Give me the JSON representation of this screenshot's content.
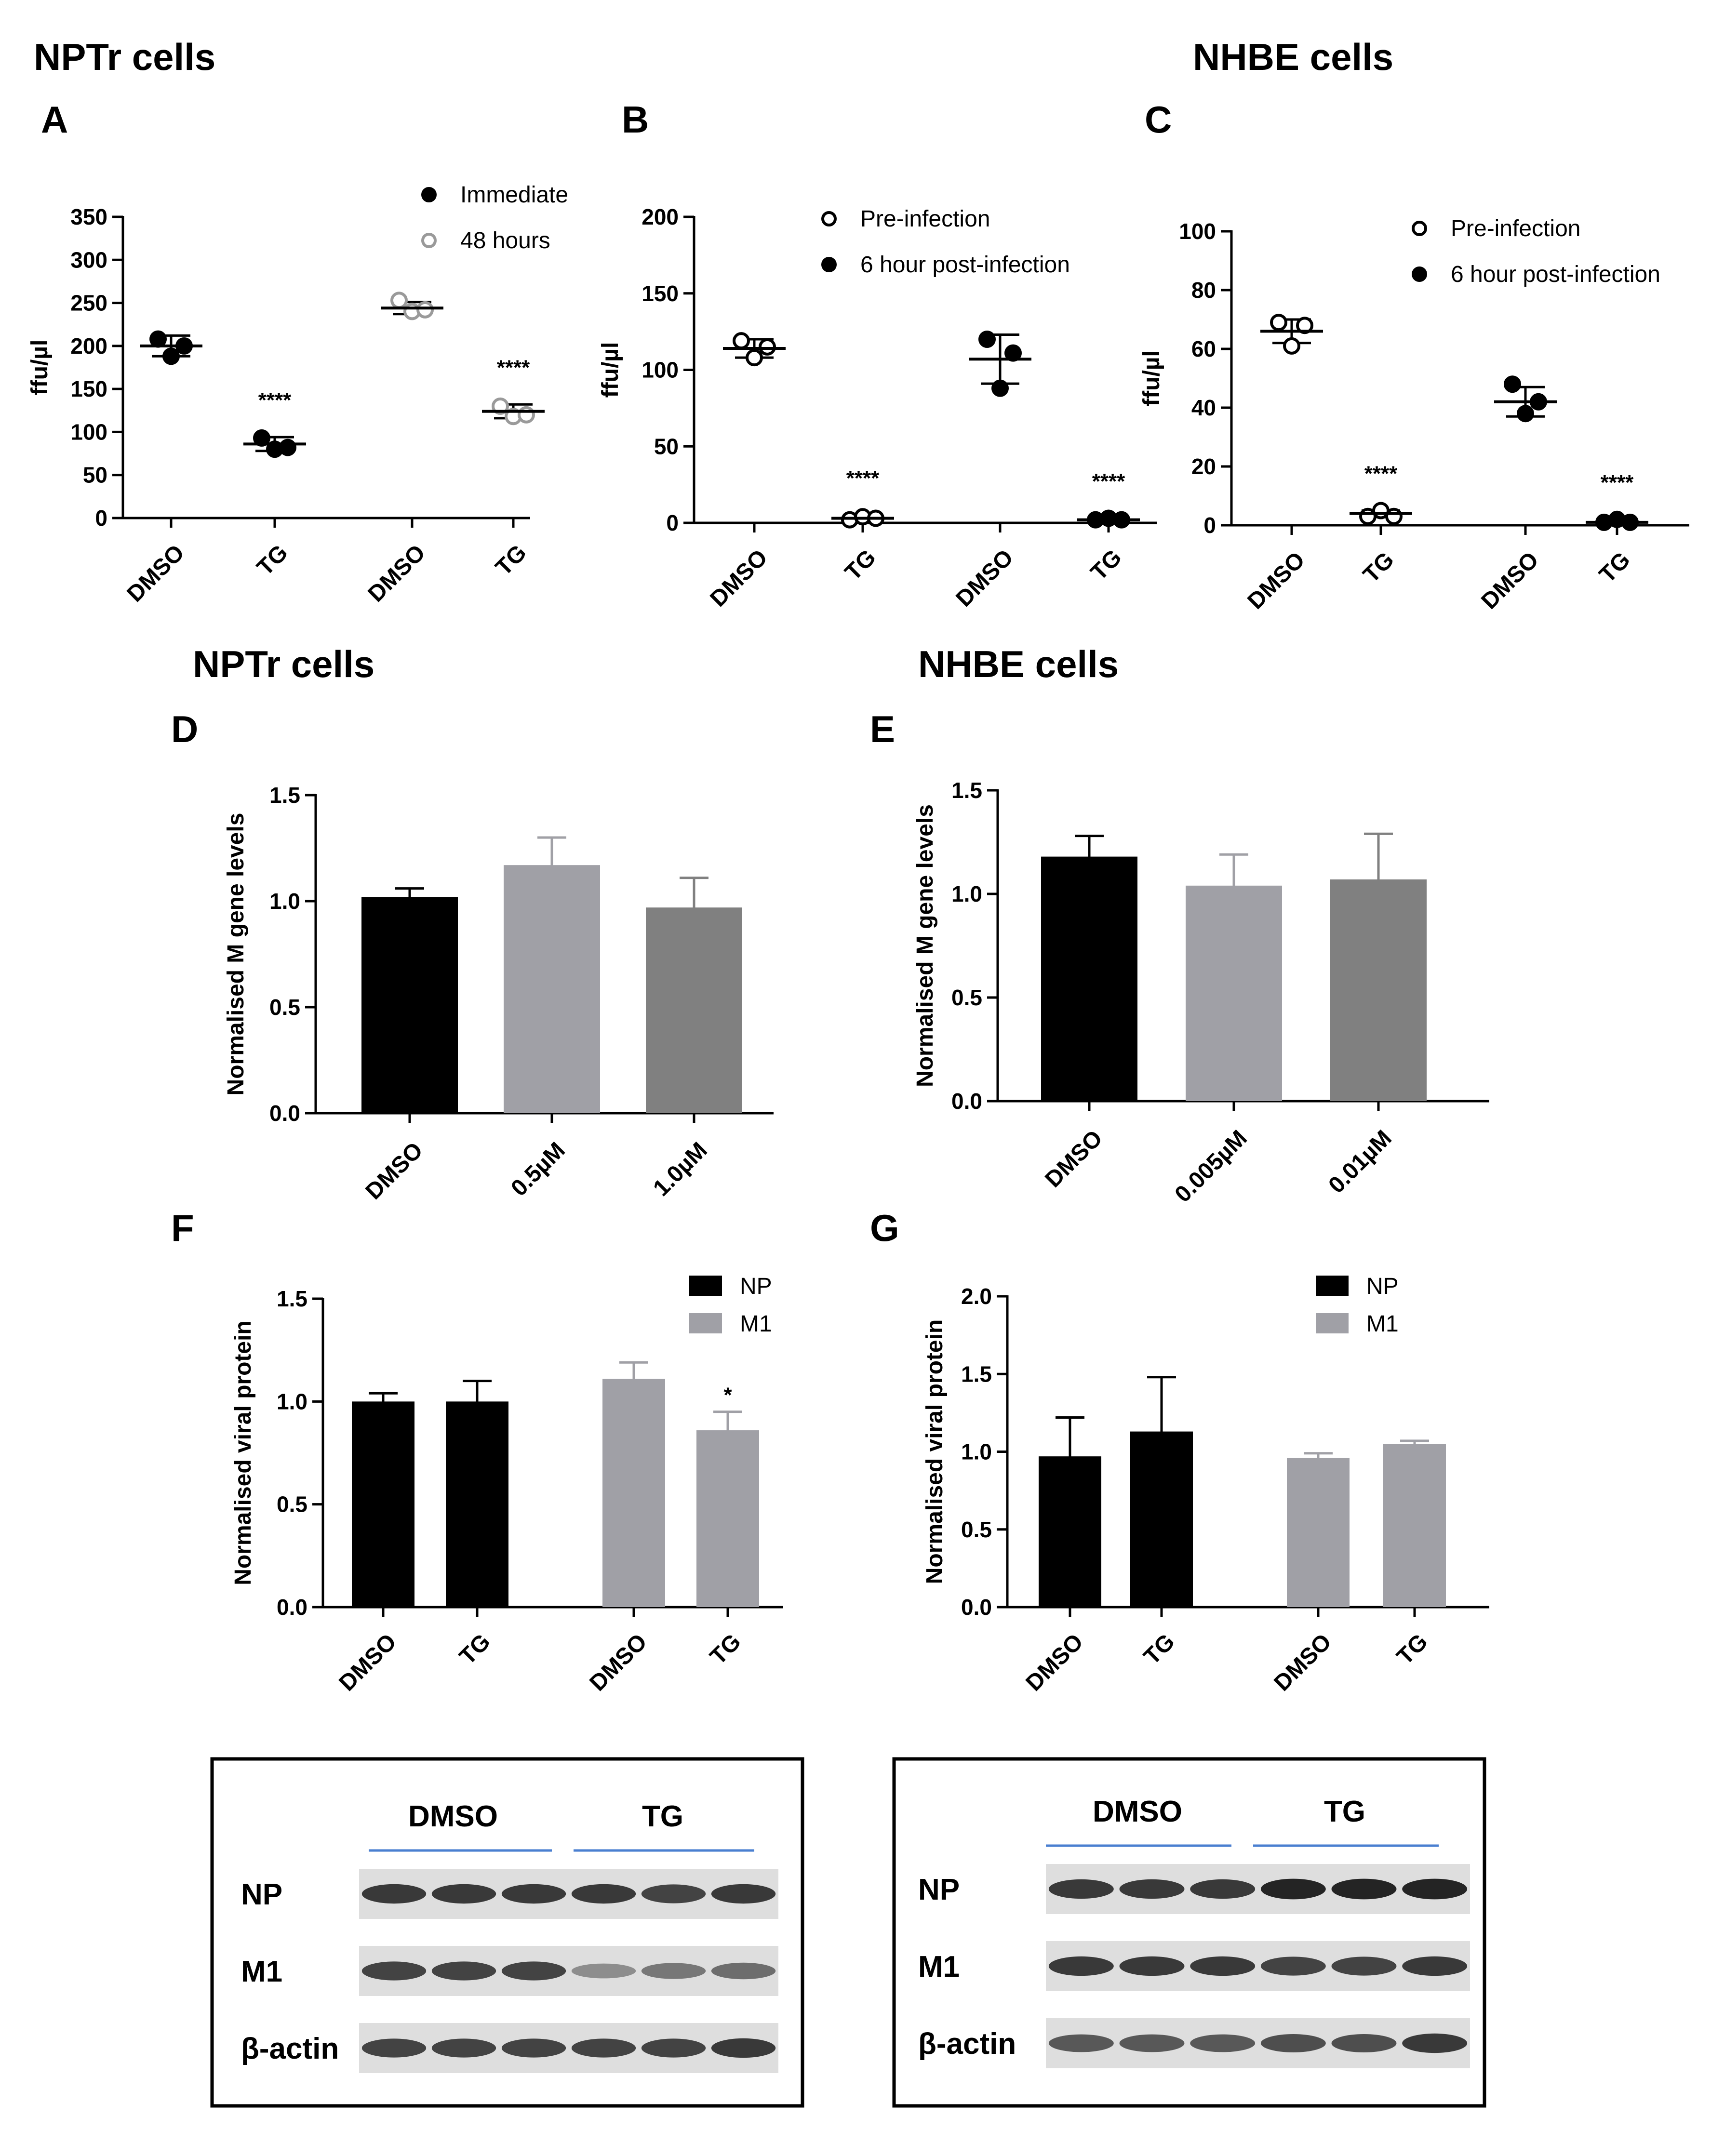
{
  "headers": {
    "top_left": "NPTr cells",
    "top_right": "NHBE cells",
    "mid_left": "NPTr cells",
    "mid_right": "NHBE cells"
  },
  "colors": {
    "black": "#000000",
    "light_gray": "#a0a0a6",
    "mid_gray": "#808080",
    "open_gray": "#9a9a9a",
    "blot_line": "#4a7fd0"
  },
  "chart_data": [
    {
      "id": "A",
      "panel_label": "A",
      "type": "scatter",
      "ylabel": "ffu/µl",
      "ylim": [
        0,
        350
      ],
      "yticks": [
        "0",
        "50",
        "100",
        "150",
        "200",
        "250",
        "300",
        "350"
      ],
      "categories": [
        "DMSO",
        "TG",
        "DMSO",
        "TG"
      ],
      "legend": [
        {
          "label": "Immediate",
          "marker": "filled"
        },
        {
          "label": "48 hours",
          "marker": "open-gray"
        }
      ],
      "groups": [
        {
          "category": "DMSO",
          "series": "Immediate",
          "points": [
            208,
            188,
            200
          ],
          "mean": 200,
          "sd": 12
        },
        {
          "category": "TG",
          "series": "Immediate",
          "points": [
            93,
            80,
            82
          ],
          "mean": 86,
          "sd": 8,
          "annotation": "****"
        },
        {
          "category": "DMSO",
          "series": "48 hours",
          "points": [
            253,
            240,
            242
          ],
          "mean": 244,
          "sd": 7
        },
        {
          "category": "TG",
          "series": "48 hours",
          "points": [
            130,
            118,
            120
          ],
          "mean": 124,
          "sd": 8,
          "annotation": "****"
        }
      ]
    },
    {
      "id": "B",
      "panel_label": "B",
      "type": "scatter",
      "ylabel": "ffu/µl",
      "ylim": [
        0,
        200
      ],
      "yticks": [
        "0",
        "50",
        "100",
        "150",
        "200"
      ],
      "categories": [
        "DMSO",
        "TG",
        "DMSO",
        "TG"
      ],
      "legend": [
        {
          "label": "Pre-infection",
          "marker": "open"
        },
        {
          "label": "6 hour post-infection",
          "marker": "filled"
        }
      ],
      "groups": [
        {
          "category": "DMSO",
          "series": "Pre-infection",
          "points": [
            119,
            108,
            115
          ],
          "mean": 114,
          "sd": 6
        },
        {
          "category": "TG",
          "series": "Pre-infection",
          "points": [
            2,
            4,
            3
          ],
          "mean": 3,
          "sd": 2,
          "annotation": "****"
        },
        {
          "category": "DMSO",
          "series": "6 hour post-infection",
          "points": [
            120,
            88,
            111
          ],
          "mean": 107,
          "sd": 16
        },
        {
          "category": "TG",
          "series": "6 hour post-infection",
          "points": [
            2,
            3,
            2
          ],
          "mean": 2,
          "sd": 1,
          "annotation": "****"
        }
      ]
    },
    {
      "id": "C",
      "panel_label": "C",
      "type": "scatter",
      "ylabel": "ffu/µl",
      "ylim": [
        0,
        100
      ],
      "yticks": [
        "0",
        "20",
        "40",
        "60",
        "80",
        "100"
      ],
      "categories": [
        "DMSO",
        "TG",
        "DMSO",
        "TG"
      ],
      "legend": [
        {
          "label": "Pre-infection",
          "marker": "open"
        },
        {
          "label": "6 hour post-infection",
          "marker": "filled"
        }
      ],
      "groups": [
        {
          "category": "DMSO",
          "series": "Pre-infection",
          "points": [
            69,
            61,
            68
          ],
          "mean": 66,
          "sd": 4
        },
        {
          "category": "TG",
          "series": "Pre-infection",
          "points": [
            3,
            5,
            3
          ],
          "mean": 4,
          "sd": 1,
          "annotation": "****"
        },
        {
          "category": "DMSO",
          "series": "6 hour post-infection",
          "points": [
            48,
            38,
            42
          ],
          "mean": 42,
          "sd": 5
        },
        {
          "category": "TG",
          "series": "6 hour post-infection",
          "points": [
            1,
            2,
            1
          ],
          "mean": 1,
          "sd": 1,
          "annotation": "****"
        }
      ]
    },
    {
      "id": "D",
      "panel_label": "D",
      "type": "bar",
      "ylabel": "Normalised M gene levels",
      "ylim": [
        0,
        1.5
      ],
      "yticks": [
        "0.0",
        "0.5",
        "1.0",
        "1.5"
      ],
      "categories": [
        "DMSO",
        "0.5µM",
        "1.0µM"
      ],
      "values": [
        1.02,
        1.17,
        0.97
      ],
      "errors": [
        0.04,
        0.13,
        0.14
      ],
      "bar_colors": [
        "#000000",
        "#a0a0a6",
        "#808080"
      ]
    },
    {
      "id": "E",
      "panel_label": "E",
      "type": "bar",
      "ylabel": "Normalised M gene levels",
      "ylim": [
        0,
        1.5
      ],
      "yticks": [
        "0.0",
        "0.5",
        "1.0",
        "1.5"
      ],
      "categories": [
        "DMSO",
        "0.005µM",
        "0.01µM"
      ],
      "values": [
        1.18,
        1.04,
        1.07
      ],
      "errors": [
        0.1,
        0.15,
        0.22
      ],
      "bar_colors": [
        "#000000",
        "#a0a0a6",
        "#808080"
      ]
    },
    {
      "id": "F",
      "panel_label": "F",
      "type": "bar",
      "ylabel": "Normalised viral protein",
      "ylim": [
        0,
        1.5
      ],
      "yticks": [
        "0.0",
        "0.5",
        "1.0",
        "1.5"
      ],
      "categories": [
        "DMSO",
        "TG",
        "DMSO",
        "TG"
      ],
      "legend": [
        {
          "label": "NP",
          "color": "#000000"
        },
        {
          "label": "M1",
          "color": "#a0a0a6"
        }
      ],
      "bars": [
        {
          "category": "DMSO",
          "series": "NP",
          "value": 1.0,
          "error": 0.04
        },
        {
          "category": "TG",
          "series": "NP",
          "value": 1.0,
          "error": 0.1
        },
        {
          "category": "DMSO",
          "series": "M1",
          "value": 1.11,
          "error": 0.08
        },
        {
          "category": "TG",
          "series": "M1",
          "value": 0.86,
          "error": 0.09,
          "annotation": "*"
        }
      ]
    },
    {
      "id": "G",
      "panel_label": "G",
      "type": "bar",
      "ylabel": "Normalised viral protein",
      "ylim": [
        0,
        2.0
      ],
      "yticks": [
        "0.0",
        "0.5",
        "1.0",
        "1.5",
        "2.0"
      ],
      "categories": [
        "DMSO",
        "TG",
        "DMSO",
        "TG"
      ],
      "legend": [
        {
          "label": "NP",
          "color": "#000000"
        },
        {
          "label": "M1",
          "color": "#a0a0a6"
        }
      ],
      "bars": [
        {
          "category": "DMSO",
          "series": "NP",
          "value": 0.97,
          "error": 0.25
        },
        {
          "category": "TG",
          "series": "NP",
          "value": 1.13,
          "error": 0.35
        },
        {
          "category": "DMSO",
          "series": "M1",
          "value": 0.96,
          "error": 0.03
        },
        {
          "category": "TG",
          "series": "M1",
          "value": 1.05,
          "error": 0.02
        }
      ]
    }
  ],
  "blots": [
    {
      "group_labels": [
        "DMSO",
        "TG"
      ],
      "rows": [
        {
          "label": "NP",
          "intensities": [
            0.85,
            0.85,
            0.85,
            0.85,
            0.8,
            0.85
          ]
        },
        {
          "label": "M1",
          "intensities": [
            0.8,
            0.8,
            0.8,
            0.45,
            0.55,
            0.6
          ]
        },
        {
          "label": "β-actin",
          "intensities": [
            0.8,
            0.8,
            0.8,
            0.8,
            0.8,
            0.85
          ]
        }
      ]
    },
    {
      "group_labels": [
        "DMSO",
        "TG"
      ],
      "rows": [
        {
          "label": "NP",
          "intensities": [
            0.85,
            0.85,
            0.85,
            0.95,
            0.95,
            0.95
          ]
        },
        {
          "label": "M1",
          "intensities": [
            0.85,
            0.85,
            0.85,
            0.8,
            0.8,
            0.85
          ]
        },
        {
          "label": "β-actin",
          "intensities": [
            0.7,
            0.7,
            0.7,
            0.75,
            0.75,
            0.85
          ]
        }
      ]
    }
  ]
}
